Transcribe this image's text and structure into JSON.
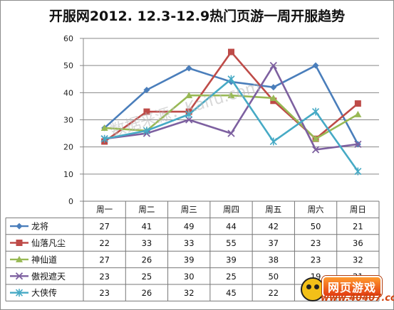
{
  "chart_data": {
    "type": "line",
    "title": "开服网2012. 12.3-12.9热门页游一周开服趋势",
    "categories": [
      "周一",
      "周二",
      "周三",
      "周四",
      "周五",
      "周六",
      "周日"
    ],
    "ylim": [
      0,
      60
    ],
    "yticks": [
      0,
      10,
      20,
      30,
      40,
      50,
      60
    ],
    "grid": true,
    "legend": "data-table-left",
    "series": [
      {
        "name": "龙将",
        "color": "#4a7ebb",
        "marker": "diamond",
        "values": [
          27,
          41,
          49,
          44,
          42,
          50,
          21
        ]
      },
      {
        "name": "仙落凡尘",
        "color": "#be4b48",
        "marker": "square",
        "values": [
          22,
          33,
          33,
          55,
          37,
          23,
          36
        ]
      },
      {
        "name": "神仙道",
        "color": "#98b954",
        "marker": "triangle",
        "values": [
          27,
          26,
          39,
          39,
          38,
          23,
          32
        ]
      },
      {
        "name": "傲视遮天",
        "color": "#7d60a0",
        "marker": "x",
        "values": [
          23,
          25,
          30,
          25,
          50,
          19,
          21
        ]
      },
      {
        "name": "大侠传",
        "color": "#46aac5",
        "marker": "star",
        "values": [
          23,
          26,
          32,
          45,
          22,
          33,
          11
        ]
      }
    ]
  },
  "watermark": "数据来源：Kaifu.com",
  "logo": {
    "badge": "网页游戏",
    "url": "www.40407.com"
  }
}
